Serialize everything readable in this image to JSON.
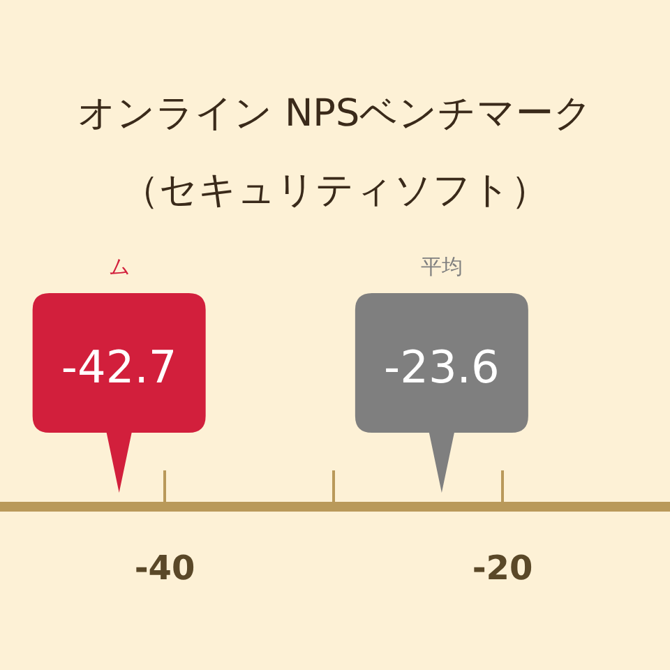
{
  "chart_data": {
    "type": "other",
    "title": "オンライン NPSベンチマーク",
    "subtitle": "（セキュリティソフト）",
    "annotations": [
      "-40",
      "-20"
    ],
    "data_labels": true,
    "series": [
      {
        "name": "ム",
        "color": "#d21f3c",
        "values": [
          -42.7
        ]
      },
      {
        "name": "平均",
        "color": "#7f7f7f",
        "values": [
          -23.6
        ]
      }
    ]
  }
}
